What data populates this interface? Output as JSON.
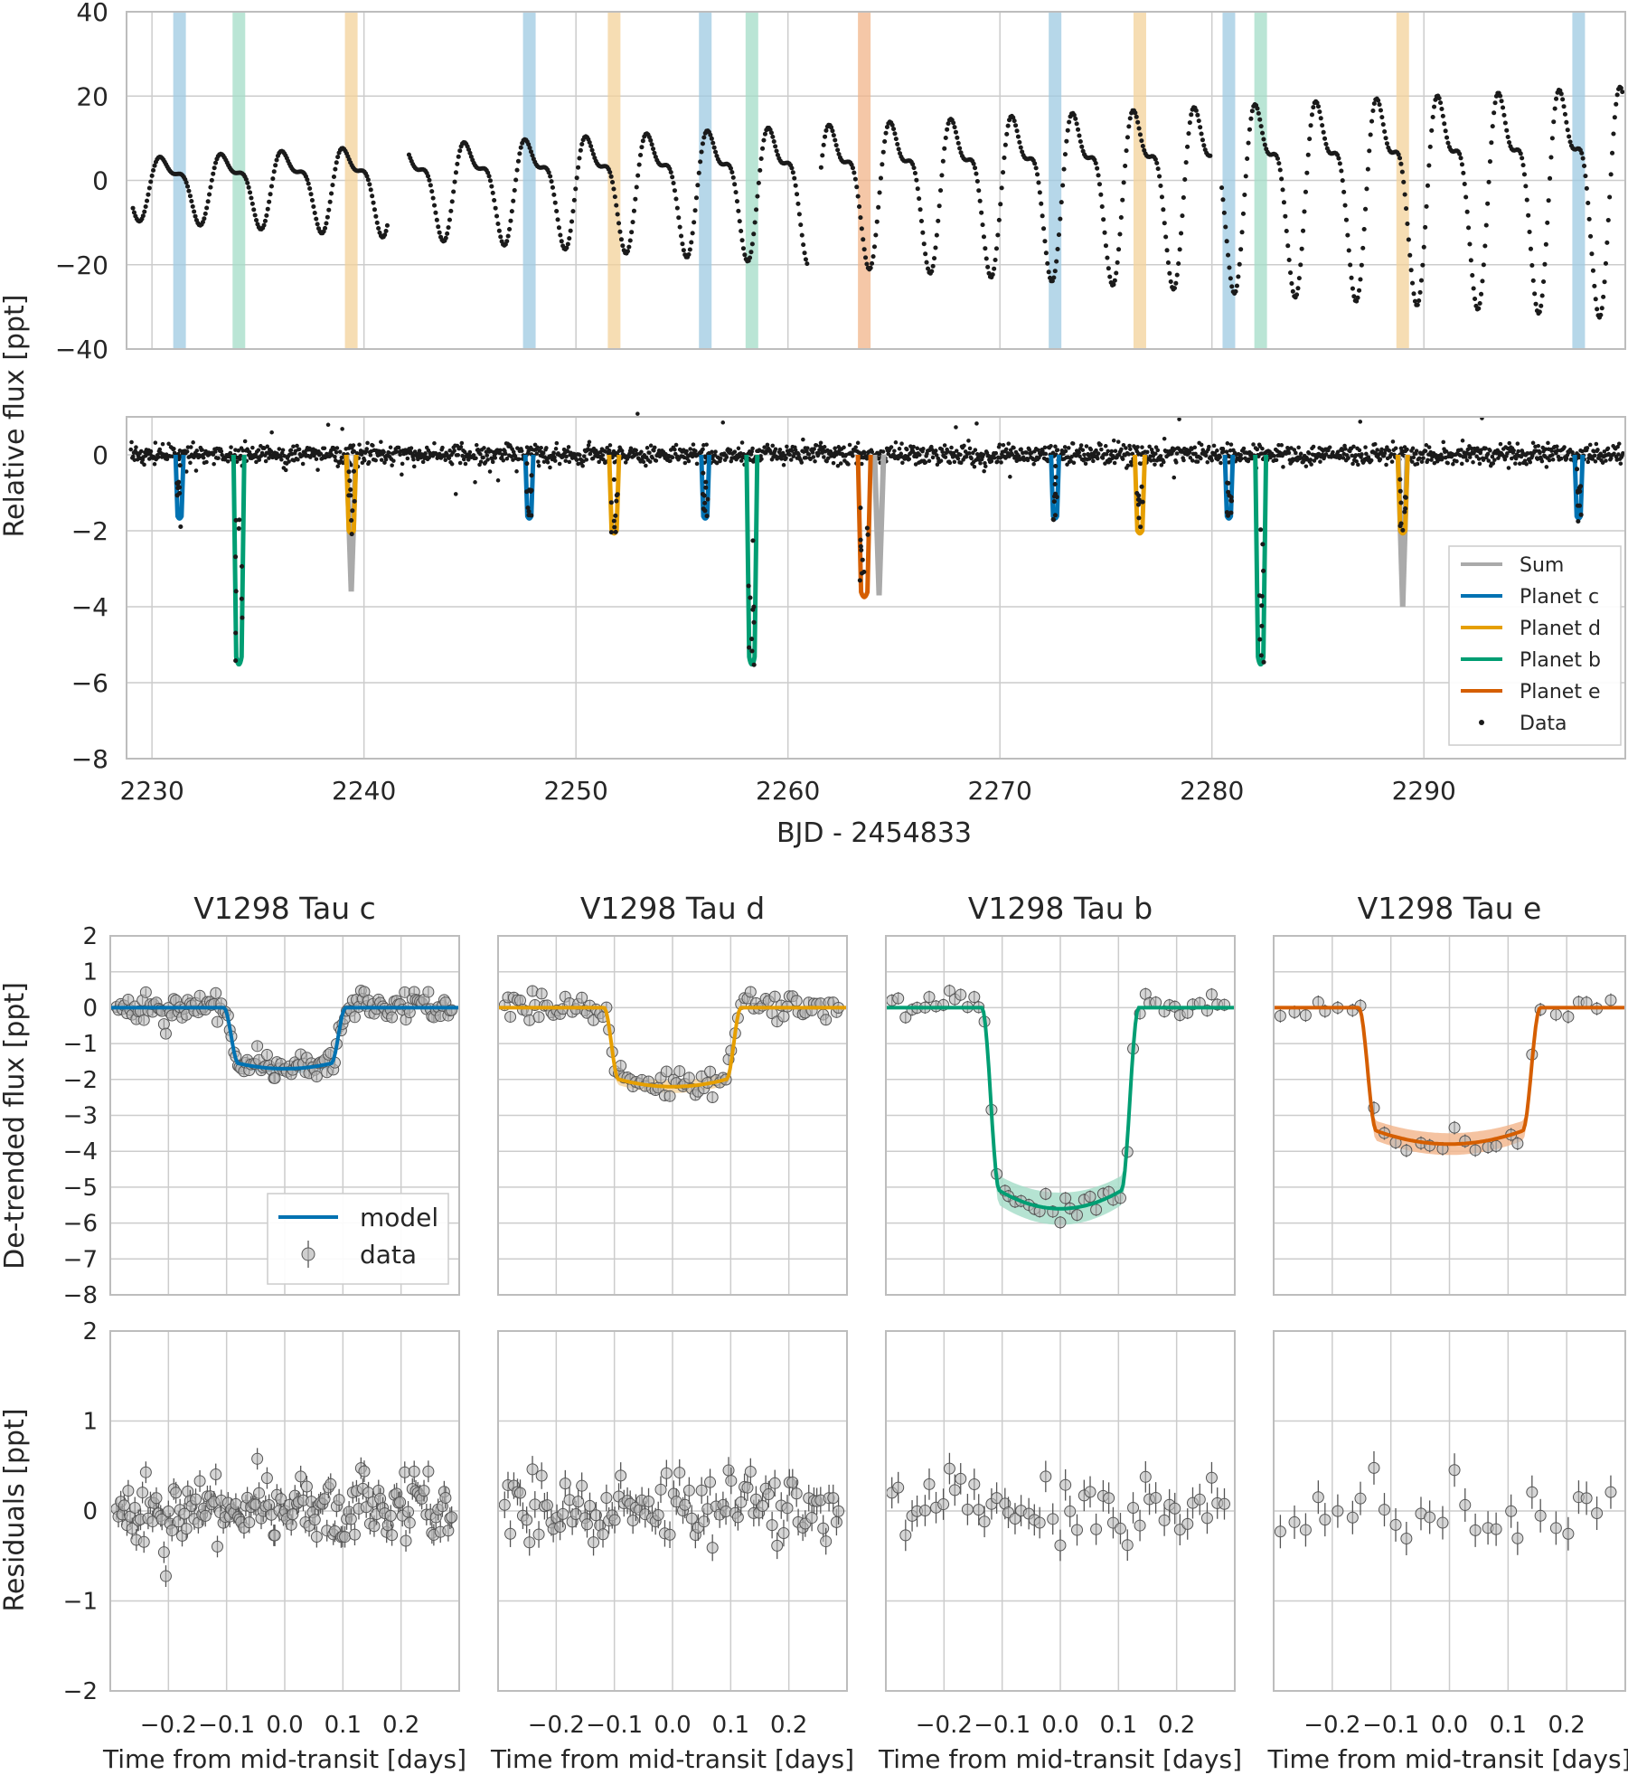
{
  "colors": {
    "c": "#0072b2",
    "d": "#e69f00",
    "b": "#009e73",
    "e": "#d55e00",
    "sum": "#aaaaaa",
    "data": "#1a1a1a",
    "light_c": "#9ecae1",
    "light_d": "#f3d19a",
    "light_b": "#a3dcc7",
    "light_e": "#f2b48a"
  },
  "shared": {
    "xlabel": "BJD - 2454833",
    "ylabel": "Relative flux [ppt]"
  },
  "chart_data": [
    {
      "panel": "raw-light-curve",
      "type": "scatter",
      "xlim": [
        2228.8,
        2299.5
      ],
      "ylim": [
        -40,
        40
      ],
      "yticks": [
        "40",
        "20",
        "0",
        "−20",
        "−40"
      ],
      "grid": true,
      "variability": {
        "baseline_start": 0,
        "baseline_end": 0,
        "amplitude_start": 8,
        "amplitude_end": 30,
        "rotation_period_days": 2.87
      },
      "transit_bands": [
        {
          "planet": "c",
          "centers": [
            2231.3,
            2247.8,
            2256.1,
            2272.6,
            2280.8,
            2297.3
          ]
        },
        {
          "planet": "d",
          "centers": [
            2239.4,
            2251.8,
            2276.6,
            2289.0
          ]
        },
        {
          "planet": "b",
          "centers": [
            2234.1,
            2258.3,
            2282.3
          ]
        },
        {
          "planet": "e",
          "centers": [
            2263.6
          ]
        }
      ]
    },
    {
      "panel": "detrended-light-curve",
      "type": "line",
      "xlim": [
        2228.8,
        2299.5
      ],
      "ylim": [
        -8,
        1
      ],
      "xticks": [
        2230,
        2240,
        2250,
        2260,
        2270,
        2280,
        2290
      ],
      "yticks": [
        "0",
        "−2",
        "−4",
        "−6",
        "−8"
      ],
      "grid": true,
      "legend_position": "lower-right",
      "legend": [
        "Sum",
        "Planet c",
        "Planet d",
        "Planet b",
        "Planet e",
        "Data"
      ],
      "series": [
        {
          "planet": "c",
          "depth": -1.7,
          "duration": 0.2,
          "centers": [
            2231.3,
            2247.8,
            2256.1,
            2272.6,
            2280.8,
            2297.3
          ]
        },
        {
          "planet": "d",
          "depth": -2.1,
          "duration": 0.25,
          "centers": [
            2239.4,
            2251.8,
            2276.6,
            2289.0
          ]
        },
        {
          "planet": "b",
          "depth": -5.6,
          "duration": 0.27,
          "centers": [
            2234.1,
            2258.3,
            2282.3
          ]
        },
        {
          "planet": "e",
          "depth": -3.8,
          "duration": 0.32,
          "centers": [
            2263.6
          ]
        }
      ],
      "sum_dips": [
        {
          "center": 2239.4,
          "depth": -3.6
        },
        {
          "center": 2264.3,
          "depth": -3.7
        },
        {
          "center": 2289.0,
          "depth": -4.0
        }
      ]
    },
    {
      "panel": "folded-transits",
      "type": "scatter",
      "xlim": [
        -0.3,
        0.3
      ],
      "top_ylim": [
        -8,
        2
      ],
      "bottom_ylim": [
        -2,
        2
      ],
      "top_yticks": [
        "2",
        "1",
        "0",
        "−1",
        "−2",
        "−3",
        "−4",
        "−5",
        "−6",
        "−7",
        "−8"
      ],
      "bottom_yticks": [
        "2",
        "1",
        "0",
        "−1",
        "−2"
      ],
      "xticks": [
        "−0.2",
        "−0.1",
        "0.0",
        "0.1",
        "0.2"
      ],
      "xlabel": "Time from mid-transit [days]",
      "top_ylabel": "De-trended flux [ppt]",
      "bottom_ylabel": "Residuals [ppt]",
      "legend": [
        "model",
        "data"
      ],
      "panels": [
        {
          "title": "V1298 Tau c",
          "planet": "c",
          "depth": -1.7,
          "half_duration": 0.105,
          "ingress": 0.025,
          "n_points": 170
        },
        {
          "title": "V1298 Tau d",
          "planet": "d",
          "depth": -2.2,
          "half_duration": 0.118,
          "ingress": 0.025,
          "n_points": 110
        },
        {
          "title": "V1298 Tau b",
          "planet": "b",
          "depth": -5.6,
          "half_duration": 0.135,
          "ingress": 0.03,
          "n_points": 55
        },
        {
          "title": "V1298 Tau e",
          "planet": "e",
          "depth": -3.8,
          "half_duration": 0.155,
          "ingress": 0.03,
          "n_points": 30
        }
      ]
    }
  ]
}
